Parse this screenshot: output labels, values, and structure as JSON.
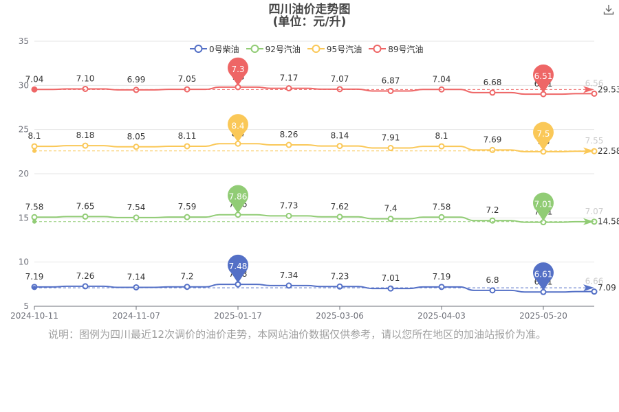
{
  "title": "四川油价走势图",
  "subtitle": "(单位：元/升)",
  "note": "说明：图例为四川最近12次调价的油价走势，本网站油价数据仅供参考，请以您所在地区的加油站报价为准。",
  "download_icon": "download-icon",
  "chart_data": {
    "type": "line",
    "title": "四川油价走势图",
    "subtitle": "(单位：元/升)",
    "ylim": [
      5,
      35
    ],
    "yticks": [
      5,
      10,
      15,
      20,
      25,
      30,
      35
    ],
    "grid": true,
    "legend_position": "top-center",
    "x_tick_labels": [
      "2024-10-11",
      "2024-11-07",
      "2025-01-17",
      "2025-03-06",
      "2025-04-03",
      "2025-05-20"
    ],
    "x_tick_indices": [
      0,
      2,
      4,
      6,
      8,
      10
    ],
    "series": [
      {
        "name": "0号柴油",
        "color": "#5470c6",
        "values": [
          7.19,
          7.26,
          7.14,
          7.2,
          7.48,
          7.34,
          7.23,
          7.01,
          7.19,
          6.8,
          6.61,
          6.66
        ],
        "labels": [
          "7.19",
          "7.26",
          "7.14",
          "7.2",
          "7.48",
          "7.34",
          "7.23",
          "7.01",
          "7.19",
          "6.8",
          "6.61",
          "6.66"
        ],
        "max_label": "7.48",
        "min_label": "6.61",
        "avg_label": "7.09",
        "avg": 7.09
      },
      {
        "name": "92号汽油",
        "color": "#91cc75",
        "values": [
          7.58,
          7.65,
          7.54,
          7.59,
          7.86,
          7.73,
          7.62,
          7.4,
          7.58,
          7.2,
          7.01,
          7.07
        ],
        "labels": [
          "7.58",
          "7.65",
          "7.54",
          "7.59",
          "7.86",
          "7.73",
          "7.62",
          "7.4",
          "7.58",
          "7.2",
          "7.01",
          "7.07"
        ],
        "max_label": "7.86",
        "min_label": "7.01",
        "avg_label": "14.58",
        "avg": 14.58
      },
      {
        "name": "95号汽油",
        "color": "#fac858",
        "values": [
          8.1,
          8.18,
          8.05,
          8.11,
          8.4,
          8.26,
          8.14,
          7.91,
          8.1,
          7.69,
          7.5,
          7.55
        ],
        "labels": [
          "8.1",
          "8.18",
          "8.05",
          "8.11",
          "8.4",
          "8.26",
          "8.14",
          "7.91",
          "8.1",
          "7.69",
          "7.5",
          "7.55"
        ],
        "max_label": "8.4",
        "min_label": "7.5",
        "avg_label": "22.58",
        "avg": 22.58
      },
      {
        "name": "89号汽油",
        "color": "#ee6666",
        "values": [
          7.04,
          7.1,
          6.99,
          7.05,
          7.3,
          7.17,
          7.07,
          6.87,
          7.04,
          6.68,
          6.51,
          6.56
        ],
        "labels": [
          "7.04",
          "7.10",
          "6.99",
          "7.05",
          "7.3",
          "7.17",
          "7.07",
          "6.87",
          "7.04",
          "6.68",
          "6.51",
          "6.56"
        ],
        "max_label": "7.3",
        "min_label": "6.51",
        "avg_label": "29.53",
        "avg": 29.53
      }
    ]
  }
}
